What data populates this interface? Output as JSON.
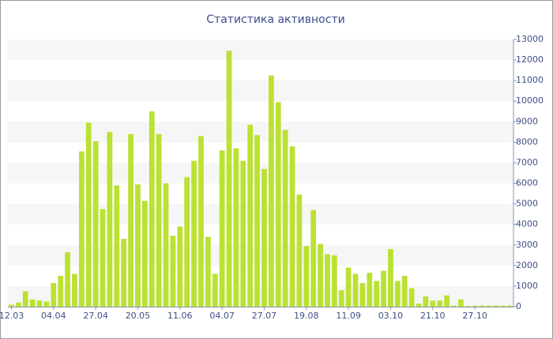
{
  "chart_data": {
    "type": "bar",
    "title": "Статистика активности",
    "categories": [
      "12.03",
      null,
      null,
      null,
      null,
      null,
      "04.04",
      null,
      null,
      null,
      null,
      null,
      "27.04",
      null,
      null,
      null,
      null,
      null,
      "20.05",
      null,
      null,
      null,
      null,
      null,
      "11.06",
      null,
      null,
      null,
      null,
      null,
      "04.07",
      null,
      null,
      null,
      null,
      null,
      "27.07",
      null,
      null,
      null,
      null,
      null,
      "19.08",
      null,
      null,
      null,
      null,
      null,
      "11.09",
      null,
      null,
      null,
      null,
      null,
      "03.10",
      null,
      null,
      null,
      null,
      null,
      "21.10",
      null,
      null,
      null,
      null,
      null,
      "27.10",
      null,
      null,
      null,
      null,
      null
    ],
    "values": [
      100,
      200,
      750,
      350,
      300,
      250,
      1150,
      1500,
      2650,
      1600,
      7550,
      8950,
      8050,
      4750,
      8500,
      5900,
      3300,
      8400,
      5950,
      5150,
      9500,
      8400,
      6000,
      3450,
      3900,
      6300,
      7100,
      8300,
      3400,
      1600,
      7600,
      12450,
      7700,
      7100,
      8850,
      8350,
      6700,
      11250,
      9950,
      8600,
      7800,
      5450,
      2950,
      4700,
      3050,
      2550,
      2500,
      800,
      1900,
      1600,
      1150,
      1650,
      1250,
      1750,
      2800,
      1250,
      1500,
      900,
      150,
      500,
      300,
      300,
      550,
      50,
      350,
      30,
      50,
      50,
      50,
      50,
      50,
      50
    ],
    "color": "#bbe133",
    "ylim": [
      0,
      13000
    ],
    "yticks": [
      0,
      1000,
      2000,
      3000,
      4000,
      5000,
      6000,
      7000,
      8000,
      9000,
      10000,
      11000,
      12000,
      13000
    ],
    "grid": true
  }
}
